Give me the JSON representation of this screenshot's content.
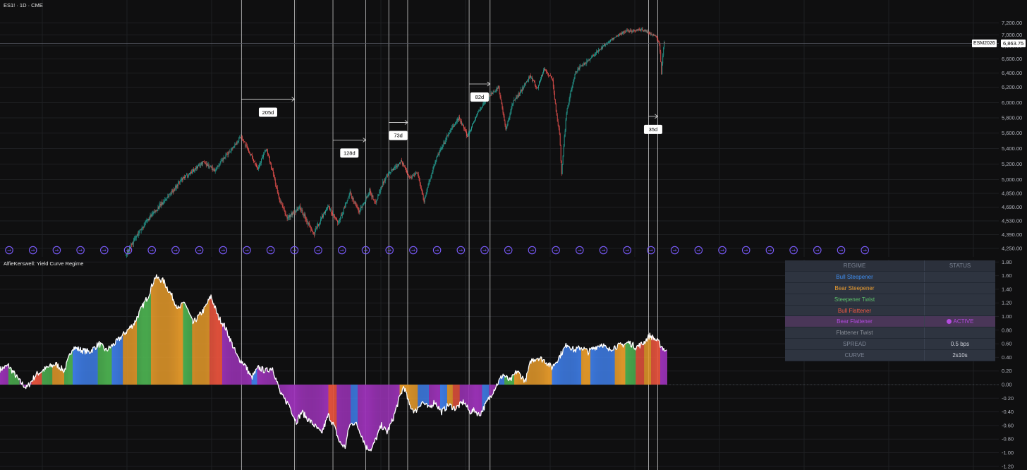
{
  "header": {
    "symbol_line": "ES1! · 1D · CME"
  },
  "indicator": {
    "title": "AlfieKerswell: Yield Curve Regime"
  },
  "price_tag": {
    "symbol": "ESM2026",
    "value": "6,863.75"
  },
  "colors": {
    "background": "#0f0f10",
    "grid": "#1e1f22",
    "up": "#26a69a",
    "down": "#ef5350",
    "bull_steepener": "#3f7ee8",
    "bear_steepener": "#e59a2b",
    "steepener_twist": "#4caf50",
    "bull_flattener": "#e5533d",
    "bear_flattener": "#9c33b8",
    "flattener_twist": "#8a8a8a",
    "spread_line": "#ffffff",
    "session_icon": "#7b5cff"
  },
  "regime_table": {
    "header": {
      "regime": "REGIME",
      "status": "STATUS"
    },
    "rows": [
      {
        "label": "Bull Steepener",
        "status": "",
        "color": "#3f8ef0"
      },
      {
        "label": "Bear Steepener",
        "status": "",
        "color": "#f0a030"
      },
      {
        "label": "Steepener Twist",
        "status": "",
        "color": "#5cc06a"
      },
      {
        "label": "Bull Flattener",
        "status": "",
        "color": "#f05a44"
      },
      {
        "label": "Bear Flattener",
        "status": "ACTIVE",
        "color": "#b44be0",
        "active": true
      },
      {
        "label": "Flattener Twist",
        "status": "",
        "color": "#8a8f98"
      },
      {
        "label": "SPREAD",
        "status": "0.5 bps",
        "color": "#7d8595"
      },
      {
        "label": "CURVE",
        "status": "2s10s",
        "color": "#7d8595"
      }
    ]
  },
  "session_icon_glyph": "⇒",
  "chart_data": [
    {
      "type": "candlestick",
      "title": "ES1! · 1D · CME",
      "y_ticks": [
        "4,250.00",
        "4,390.00",
        "4,530.00",
        "4,690.00",
        "4,850.00",
        "5,000.00",
        "5,200.00",
        "5,400.00",
        "5,600.00",
        "5,800.00",
        "6,000.00",
        "6,200.00",
        "6,400.00",
        "6,600.00",
        "6,800.00",
        "7,000.00",
        "7,200.00"
      ],
      "y_tick_values": [
        4250,
        4390,
        4530,
        4690,
        4850,
        5000,
        5200,
        5400,
        5600,
        5800,
        6000,
        6200,
        6400,
        6600,
        6800,
        7000,
        7200
      ],
      "ylim": [
        4200,
        7350
      ],
      "last_price": 6863.75,
      "price_path": [
        [
          0,
          4180
        ],
        [
          20,
          4420
        ],
        [
          48,
          4690
        ],
        [
          80,
          4990
        ],
        [
          112,
          5230
        ],
        [
          128,
          5120
        ],
        [
          158,
          5460
        ],
        [
          166,
          5560
        ],
        [
          178,
          5350
        ],
        [
          190,
          5150
        ],
        [
          202,
          5400
        ],
        [
          220,
          4800
        ],
        [
          232,
          4560
        ],
        [
          250,
          4690
        ],
        [
          270,
          4390
        ],
        [
          290,
          4700
        ],
        [
          305,
          4500
        ],
        [
          322,
          4850
        ],
        [
          335,
          4640
        ],
        [
          350,
          4880
        ],
        [
          358,
          4740
        ],
        [
          370,
          4980
        ],
        [
          382,
          5120
        ],
        [
          395,
          5240
        ],
        [
          408,
          5020
        ],
        [
          418,
          5100
        ],
        [
          428,
          4760
        ],
        [
          445,
          5260
        ],
        [
          465,
          5620
        ],
        [
          478,
          5800
        ],
        [
          490,
          5560
        ],
        [
          505,
          5870
        ],
        [
          520,
          6080
        ],
        [
          535,
          6200
        ],
        [
          545,
          5640
        ],
        [
          555,
          6000
        ],
        [
          565,
          6120
        ],
        [
          580,
          6360
        ],
        [
          590,
          6180
        ],
        [
          600,
          6460
        ],
        [
          612,
          6300
        ],
        [
          618,
          5820
        ],
        [
          622,
          5600
        ],
        [
          625,
          5080
        ],
        [
          632,
          5880
        ],
        [
          645,
          6420
        ],
        [
          660,
          6550
        ],
        [
          680,
          6750
        ],
        [
          700,
          6950
        ],
        [
          715,
          7060
        ],
        [
          740,
          7090
        ],
        [
          760,
          6980
        ],
        [
          765,
          6850
        ],
        [
          768,
          6400
        ],
        [
          772,
          6880
        ]
      ],
      "range_markers": [
        {
          "label": "205d",
          "start_bar": 166,
          "end_bar": 242,
          "price": 6045
        },
        {
          "label": "128d",
          "start_bar": 297,
          "end_bar": 344,
          "price": 5510
        },
        {
          "label": "73d",
          "start_bar": 377,
          "end_bar": 404,
          "price": 5740
        },
        {
          "label": "82d",
          "start_bar": 492,
          "end_bar": 522,
          "price": 6245
        },
        {
          "label": "35d",
          "start_bar": 749,
          "end_bar": 762,
          "price": 5820
        }
      ],
      "session_markers_count": 37
    },
    {
      "type": "histogram",
      "title": "AlfieKerswell: Yield Curve Regime",
      "y_ticks": [
        "-1.20",
        "-1.00",
        "-0.80",
        "-0.60",
        "-0.40",
        "-0.20",
        "0.00",
        "0.20",
        "0.40",
        "0.60",
        "0.80",
        "1.00",
        "1.20",
        "1.40",
        "1.60",
        "1.80"
      ],
      "y_tick_values": [
        -1.2,
        -1.0,
        -0.8,
        -0.6,
        -0.4,
        -0.2,
        0,
        0.2,
        0.4,
        0.6,
        0.8,
        1.0,
        1.2,
        1.4,
        1.6,
        1.8
      ],
      "ylim": [
        -1.25,
        1.85
      ],
      "zero_line": 0,
      "spread_path": [
        [
          0,
          0.22
        ],
        [
          12,
          0.28
        ],
        [
          28,
          0.05
        ],
        [
          38,
          -0.05
        ],
        [
          52,
          0.15
        ],
        [
          68,
          0.25
        ],
        [
          80,
          0.3
        ],
        [
          92,
          0.2
        ],
        [
          104,
          0.55
        ],
        [
          118,
          0.5
        ],
        [
          128,
          0.48
        ],
        [
          142,
          0.6
        ],
        [
          152,
          0.5
        ],
        [
          166,
          0.62
        ],
        [
          178,
          0.75
        ],
        [
          192,
          0.9
        ],
        [
          204,
          1.15
        ],
        [
          212,
          1.3
        ],
        [
          222,
          1.58
        ],
        [
          234,
          1.52
        ],
        [
          246,
          1.3
        ],
        [
          256,
          1.1
        ],
        [
          264,
          1.22
        ],
        [
          276,
          0.9
        ],
        [
          292,
          1.1
        ],
        [
          302,
          1.3
        ],
        [
          312,
          1.0
        ],
        [
          322,
          0.85
        ],
        [
          332,
          0.6
        ],
        [
          340,
          0.4
        ],
        [
          350,
          0.3
        ],
        [
          360,
          0.1
        ],
        [
          370,
          0.25
        ],
        [
          380,
          0.2
        ],
        [
          390,
          0.25
        ],
        [
          396,
          0.05
        ],
        [
          402,
          -0.15
        ],
        [
          414,
          -0.3
        ],
        [
          424,
          -0.55
        ],
        [
          432,
          -0.4
        ],
        [
          440,
          -0.5
        ],
        [
          450,
          -0.6
        ],
        [
          460,
          -0.72
        ],
        [
          470,
          -0.45
        ],
        [
          478,
          -0.6
        ],
        [
          486,
          -0.85
        ],
        [
          494,
          -0.92
        ],
        [
          500,
          -0.6
        ],
        [
          508,
          -0.55
        ],
        [
          516,
          -0.7
        ],
        [
          524,
          -0.92
        ],
        [
          532,
          -0.95
        ],
        [
          538,
          -0.8
        ],
        [
          546,
          -0.6
        ],
        [
          554,
          -0.7
        ],
        [
          562,
          -0.52
        ],
        [
          570,
          -0.25
        ],
        [
          578,
          -0.02
        ],
        [
          586,
          -0.3
        ],
        [
          594,
          -0.4
        ],
        [
          604,
          -0.25
        ],
        [
          614,
          -0.35
        ],
        [
          622,
          -0.25
        ],
        [
          632,
          -0.4
        ],
        [
          642,
          -0.3
        ],
        [
          652,
          -0.35
        ],
        [
          664,
          -0.25
        ],
        [
          672,
          -0.4
        ],
        [
          680,
          -0.38
        ],
        [
          686,
          -0.45
        ],
        [
          692,
          -0.35
        ],
        [
          700,
          -0.2
        ],
        [
          710,
          -0.02
        ],
        [
          720,
          0.15
        ],
        [
          730,
          0.05
        ],
        [
          740,
          0.2
        ],
        [
          752,
          0.05
        ],
        [
          760,
          0.35
        ],
        [
          770,
          0.4
        ],
        [
          780,
          0.35
        ],
        [
          790,
          0.25
        ],
        [
          800,
          0.4
        ],
        [
          812,
          0.6
        ],
        [
          822,
          0.5
        ],
        [
          832,
          0.55
        ],
        [
          842,
          0.48
        ],
        [
          852,
          0.55
        ],
        [
          862,
          0.6
        ],
        [
          870,
          0.5
        ],
        [
          878,
          0.55
        ],
        [
          890,
          0.58
        ],
        [
          900,
          0.62
        ],
        [
          910,
          0.55
        ],
        [
          920,
          0.6
        ],
        [
          930,
          0.72
        ],
        [
          940,
          0.65
        ],
        [
          948,
          0.55
        ],
        [
          954,
          0.48
        ]
      ],
      "regime_segments": [
        {
          "regime": "bear_flattener",
          "from": 0,
          "to": 12
        },
        {
          "regime": "steepener_twist",
          "from": 12,
          "to": 28
        },
        {
          "regime": "bear_flattener",
          "from": 28,
          "to": 45
        },
        {
          "regime": "bull_flattener",
          "from": 45,
          "to": 60
        },
        {
          "regime": "steepener_twist",
          "from": 60,
          "to": 75
        },
        {
          "regime": "bear_steepener",
          "from": 75,
          "to": 92
        },
        {
          "regime": "steepener_twist",
          "from": 92,
          "to": 104
        },
        {
          "regime": "bull_steepener",
          "from": 104,
          "to": 140
        },
        {
          "regime": "steepener_twist",
          "from": 140,
          "to": 160
        },
        {
          "regime": "bull_steepener",
          "from": 160,
          "to": 176
        },
        {
          "regime": "bear_steepener",
          "from": 176,
          "to": 196
        },
        {
          "regime": "steepener_twist",
          "from": 196,
          "to": 216
        },
        {
          "regime": "bear_steepener",
          "from": 216,
          "to": 262
        },
        {
          "regime": "steepener_twist",
          "from": 262,
          "to": 275
        },
        {
          "regime": "bear_steepener",
          "from": 275,
          "to": 300
        },
        {
          "regime": "bull_flattener",
          "from": 300,
          "to": 318
        },
        {
          "regime": "bear_flattener",
          "from": 318,
          "to": 360
        },
        {
          "regime": "bull_steepener",
          "from": 360,
          "to": 368
        },
        {
          "regime": "bear_flattener",
          "from": 368,
          "to": 470
        },
        {
          "regime": "bull_flattener",
          "from": 470,
          "to": 482
        },
        {
          "regime": "bear_flattener",
          "from": 482,
          "to": 502
        },
        {
          "regime": "bull_steepener",
          "from": 502,
          "to": 512
        },
        {
          "regime": "bear_flattener",
          "from": 512,
          "to": 572
        },
        {
          "regime": "bear_steepener",
          "from": 572,
          "to": 598
        },
        {
          "regime": "bull_steepener",
          "from": 598,
          "to": 614
        },
        {
          "regime": "bear_flattener",
          "from": 614,
          "to": 630
        },
        {
          "regime": "bull_steepener",
          "from": 630,
          "to": 640
        },
        {
          "regime": "bear_steepener",
          "from": 640,
          "to": 648
        },
        {
          "regime": "bull_flattener",
          "from": 648,
          "to": 658
        },
        {
          "regime": "bear_flattener",
          "from": 658,
          "to": 690
        },
        {
          "regime": "bull_steepener",
          "from": 690,
          "to": 700
        },
        {
          "regime": "bear_flattener",
          "from": 700,
          "to": 712
        },
        {
          "regime": "bull_steepener",
          "from": 712,
          "to": 722
        },
        {
          "regime": "steepener_twist",
          "from": 722,
          "to": 736
        },
        {
          "regime": "bear_steepener",
          "from": 736,
          "to": 758
        },
        {
          "regime": "bear_steepener",
          "from": 758,
          "to": 790
        },
        {
          "regime": "bull_steepener",
          "from": 790,
          "to": 832
        },
        {
          "regime": "bear_steepener",
          "from": 832,
          "to": 845
        },
        {
          "regime": "bull_steepener",
          "from": 845,
          "to": 880
        },
        {
          "regime": "bear_steepener",
          "from": 880,
          "to": 895
        },
        {
          "regime": "steepener_twist",
          "from": 895,
          "to": 910
        },
        {
          "regime": "bull_flattener",
          "from": 910,
          "to": 922
        },
        {
          "regime": "bear_steepener",
          "from": 922,
          "to": 932
        },
        {
          "regime": "bull_flattener",
          "from": 932,
          "to": 945
        },
        {
          "regime": "bear_flattener",
          "from": 945,
          "to": 955
        }
      ]
    }
  ]
}
